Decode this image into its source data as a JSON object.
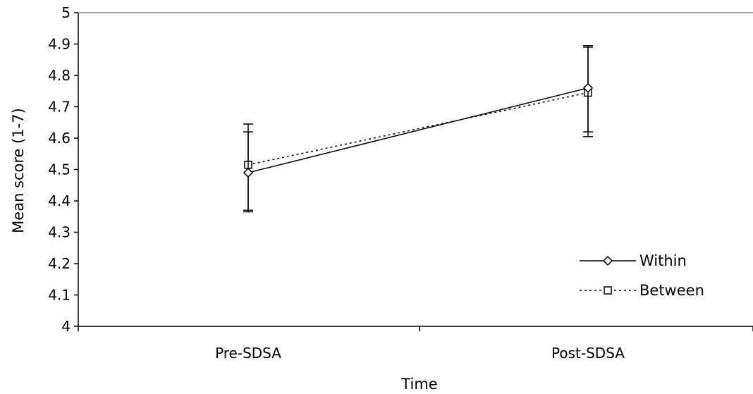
{
  "chart_data": {
    "type": "line",
    "categories": [
      "Pre-SDSA",
      "Post-SDSA"
    ],
    "xlabel": "Time",
    "ylabel": "Mean score (1-7)",
    "ylim": [
      4,
      5
    ],
    "yticks": [
      "4",
      "4.1",
      "4.2",
      "4.3",
      "4.4",
      "4.5",
      "4.6",
      "4.7",
      "4.8",
      "4.9",
      "5"
    ],
    "grid": false,
    "legend_position": "bottom-right",
    "series": [
      {
        "name": "Within",
        "marker": "diamond",
        "line_style": "solid",
        "values": [
          4.49,
          4.76
        ],
        "error_low": [
          4.37,
          4.62
        ],
        "error_high": [
          4.62,
          4.895
        ]
      },
      {
        "name": "Between",
        "marker": "square",
        "line_style": "dotted",
        "values": [
          4.515,
          4.745
        ],
        "error_low": [
          4.365,
          4.605
        ],
        "error_high": [
          4.645,
          4.89
        ]
      }
    ]
  }
}
